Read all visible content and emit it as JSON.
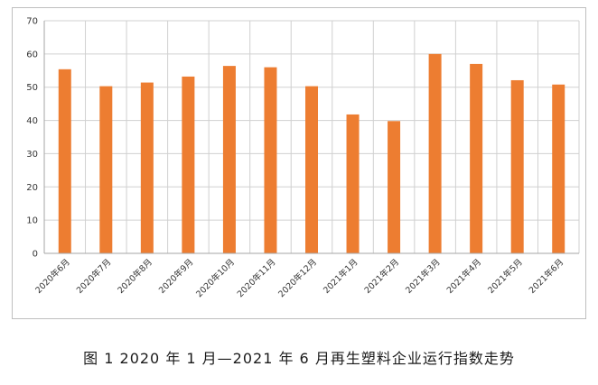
{
  "caption": "图 1  2020 年 1 月—2021 年 6 月再生塑料企业运行指数走势",
  "chart_data": {
    "type": "bar",
    "title": "",
    "xlabel": "",
    "ylabel": "",
    "ylim": [
      0,
      70
    ],
    "yticks": [
      "0",
      "10",
      "20",
      "30",
      "40",
      "50",
      "60",
      "70"
    ],
    "grid": true,
    "bar_color": "#ed7d31",
    "categories": [
      "2020年6月",
      "2020年7月",
      "2020年8月",
      "2020年9月",
      "2020年10月",
      "2020年11月",
      "2020年12月",
      "2021年1月",
      "2021年2月",
      "2021年3月",
      "2021年4月",
      "2021年5月",
      "2021年6月"
    ],
    "values": [
      55.4,
      50.3,
      51.4,
      53.2,
      56.4,
      56.0,
      50.3,
      41.8,
      39.8,
      60.0,
      57.0,
      52.1,
      50.8
    ]
  }
}
